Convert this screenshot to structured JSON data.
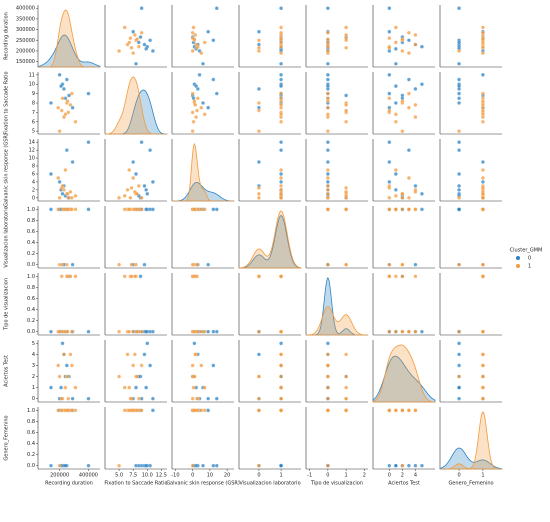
{
  "chart_data": {
    "type": "pairplot",
    "variables": [
      {
        "name": "Recording duration",
        "xlim": [
          50000,
          480000
        ],
        "xticks": [
          200000,
          400000
        ],
        "ylim": [
          125000,
          415000
        ],
        "yticks": [
          150000,
          200000,
          250000,
          300000,
          350000,
          400000
        ]
      },
      {
        "name": "Fixation to Saccade Ratio",
        "xlim": [
          2.5,
          13.5
        ],
        "xticks": [
          {
            "value": 5,
            "label": "5.0"
          },
          {
            "value": 7.5,
            "label": "7.5"
          },
          {
            "value": 10,
            "label": "10.0"
          },
          {
            "value": 12.5,
            "label": "12.5"
          }
        ],
        "ylim": [
          4.7,
          11.3
        ],
        "yticks": [
          5,
          6,
          7,
          8,
          9,
          10,
          11
        ]
      },
      {
        "name": "Galvanic skin response (GSR)",
        "xlim": [
          -12,
          24
        ],
        "xticks": [
          -10,
          0,
          10,
          20
        ],
        "ylim": [
          -0.8,
          14.8
        ],
        "yticks": [
          0,
          2,
          4,
          6,
          8,
          10,
          12,
          14
        ]
      },
      {
        "name": "Visualizacion laboratorio",
        "xlim": [
          -0.9,
          1.9
        ],
        "xticks": [
          0,
          1
        ],
        "ylim": [
          -0.06,
          1.06
        ],
        "yticks": [
          {
            "value": 0,
            "label": "0.0"
          },
          {
            "value": 0.2,
            "label": "0.2"
          },
          {
            "value": 0.4,
            "label": "0.4"
          },
          {
            "value": 0.6,
            "label": "0.6"
          },
          {
            "value": 0.8,
            "label": "0.8"
          },
          {
            "value": 1,
            "label": "1.0"
          }
        ]
      },
      {
        "name": "Tipo de visualizacion",
        "xlim": [
          -1.2,
          2.2
        ],
        "xticks": [
          -1,
          0,
          1,
          2
        ],
        "ylim": [
          -0.06,
          1.06
        ],
        "yticks": [
          {
            "value": 0,
            "label": "0.0"
          },
          {
            "value": 0.2,
            "label": "0.2"
          },
          {
            "value": 0.4,
            "label": "0.4"
          },
          {
            "value": 0.6,
            "label": "0.6"
          },
          {
            "value": 0.8,
            "label": "0.8"
          },
          {
            "value": 1,
            "label": "1.0"
          }
        ]
      },
      {
        "name": "Aciertos Test",
        "xlim": [
          -2.5,
          7
        ],
        "xticks": [
          0,
          2,
          4
        ],
        "ylim": [
          -0.3,
          5.3
        ],
        "yticks": [
          0,
          1,
          2,
          3,
          4,
          5
        ]
      },
      {
        "name": "Genero_Femenino",
        "xlim": [
          -0.8,
          1.8
        ],
        "xticks": [
          0,
          1
        ],
        "ylim": [
          -0.06,
          1.06
        ],
        "yticks": [
          {
            "value": 0,
            "label": "0.0"
          },
          {
            "value": 0.2,
            "label": "0.2"
          },
          {
            "value": 0.4,
            "label": "0.4"
          },
          {
            "value": 0.6,
            "label": "0.6"
          },
          {
            "value": 0.8,
            "label": "0.8"
          },
          {
            "value": 1,
            "label": "1.0"
          }
        ]
      }
    ],
    "legend_title": "Cluster_GMM",
    "series": [
      {
        "name": "0",
        "color": "#2b83c4",
        "points": [
          [
            400000,
            9.0,
            14,
            1,
            0,
            0,
            0
          ],
          [
            250000,
            10.5,
            12,
            1,
            0,
            3,
            0
          ],
          [
            230000,
            9.5,
            3,
            0,
            0,
            4,
            0
          ],
          [
            140000,
            8.0,
            6,
            1,
            0,
            1,
            0
          ],
          [
            265000,
            8.8,
            0,
            1,
            1,
            2,
            1
          ],
          [
            220000,
            10.0,
            1,
            1,
            0,
            5,
            0
          ],
          [
            290000,
            7.5,
            9,
            0,
            0,
            0,
            1
          ],
          [
            210000,
            9.8,
            2,
            1,
            0,
            1,
            0
          ],
          [
            240000,
            8.5,
            0.5,
            1,
            0,
            2,
            0
          ],
          [
            200000,
            11.0,
            4,
            1,
            0,
            0,
            1
          ]
        ]
      },
      {
        "name": "1",
        "color": "#f39a3e",
        "points": [
          [
            260000,
            7.0,
            0,
            1,
            1,
            0,
            1
          ],
          [
            230000,
            6.5,
            2,
            1,
            0,
            4,
            1
          ],
          [
            250000,
            8.0,
            1,
            0,
            1,
            2,
            1
          ],
          [
            190000,
            7.5,
            5,
            1,
            0,
            3,
            1
          ],
          [
            310000,
            6.0,
            0.5,
            1,
            1,
            1,
            1
          ],
          [
            220000,
            8.5,
            3,
            1,
            0,
            0,
            1
          ],
          [
            200000,
            5.0,
            0,
            0,
            0,
            2,
            0
          ],
          [
            275000,
            7.8,
            1.5,
            1,
            1,
            4,
            1
          ],
          [
            240000,
            6.8,
            7,
            1,
            0,
            1,
            1
          ],
          [
            285000,
            9.0,
            0,
            1,
            0,
            3,
            1
          ],
          [
            215000,
            7.2,
            2.5,
            0,
            1,
            0,
            1
          ],
          [
            255000,
            8.2,
            1,
            1,
            0,
            2,
            1
          ]
        ]
      }
    ]
  }
}
